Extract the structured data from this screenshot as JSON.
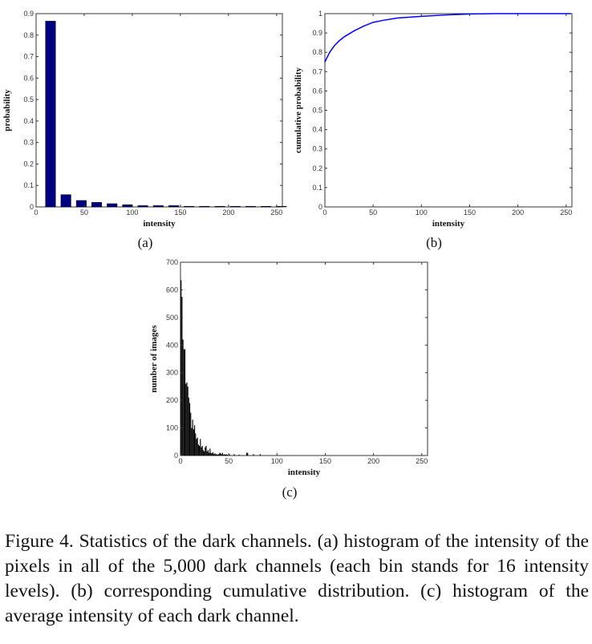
{
  "colors": {
    "bars_a": "#000080",
    "line_b": "#0000ff",
    "bars_c": "#000000",
    "axes": "#333333"
  },
  "chart_data": [
    {
      "type": "bar",
      "panel_label": "(a)",
      "xlabel": "intensity",
      "ylabel": "probability",
      "xlim": [
        0,
        256
      ],
      "ylim": [
        0,
        0.9
      ],
      "xticks": [
        0,
        50,
        100,
        150,
        200,
        250
      ],
      "yticks": [
        0,
        0.1,
        0.2,
        0.3,
        0.4,
        0.5,
        0.6,
        0.7,
        0.8,
        0.9
      ],
      "x": [
        15,
        31,
        47,
        63,
        79,
        95,
        111,
        127,
        143,
        159,
        175,
        191,
        207,
        223,
        239,
        255
      ],
      "values": [
        0.865,
        0.057,
        0.03,
        0.021,
        0.015,
        0.01,
        0.006,
        0.006,
        0.006,
        0.003,
        0.003,
        0.003,
        0.003,
        0.003,
        0.003,
        0.003
      ],
      "grid": false
    },
    {
      "type": "line",
      "panel_label": "(b)",
      "xlabel": "intensity",
      "ylabel": "cumulative probability",
      "xlim": [
        0,
        256
      ],
      "ylim": [
        0,
        1
      ],
      "xticks": [
        0,
        50,
        100,
        150,
        200,
        250
      ],
      "yticks": [
        0,
        0.1,
        0.2,
        0.3,
        0.4,
        0.5,
        0.6,
        0.7,
        0.8,
        0.9,
        1
      ],
      "x": [
        0,
        2,
        5,
        10,
        15,
        20,
        30,
        40,
        50,
        60,
        75,
        100,
        125,
        150,
        175,
        200,
        255
      ],
      "y": [
        0.75,
        0.77,
        0.8,
        0.835,
        0.86,
        0.88,
        0.91,
        0.935,
        0.955,
        0.965,
        0.977,
        0.986,
        0.993,
        0.998,
        1,
        1,
        1
      ],
      "grid": false
    },
    {
      "type": "bar",
      "panel_label": "(c)",
      "xlabel": "intensity",
      "ylabel": "number of images",
      "xlim": [
        0,
        256
      ],
      "ylim": [
        0,
        700
      ],
      "xticks": [
        0,
        50,
        100,
        150,
        200,
        250
      ],
      "yticks": [
        0,
        100,
        200,
        300,
        400,
        500,
        600,
        700
      ],
      "x": [
        0,
        1,
        2,
        3,
        4,
        5,
        6,
        7,
        8,
        9,
        10,
        11,
        12,
        13,
        14,
        15,
        16,
        17,
        18,
        19,
        20,
        21,
        22,
        23,
        24,
        25,
        26,
        27,
        28,
        29,
        30,
        31,
        32,
        33,
        34,
        35,
        36,
        37,
        38,
        39,
        40,
        41,
        42,
        43,
        44,
        45,
        46,
        47,
        48,
        50,
        55,
        60,
        68,
        69,
        75,
        82
      ],
      "values": [
        635,
        575,
        420,
        385,
        385,
        260,
        265,
        250,
        210,
        190,
        155,
        100,
        130,
        95,
        110,
        80,
        60,
        65,
        40,
        35,
        60,
        30,
        35,
        20,
        15,
        30,
        35,
        15,
        20,
        10,
        25,
        10,
        8,
        12,
        5,
        8,
        5,
        5,
        3,
        5,
        10,
        8,
        5,
        10,
        3,
        5,
        3,
        5,
        3,
        5,
        5,
        3,
        10,
        10,
        5,
        5
      ],
      "grid": false
    }
  ],
  "caption": "Figure 4. Statistics of the dark channels. (a) histogram of the intensity of the pixels in all of the 5,000 dark channels (each bin stands for 16 intensity levels). (b) corresponding cumulative distribution. (c) histogram of the average intensity of each dark channel."
}
